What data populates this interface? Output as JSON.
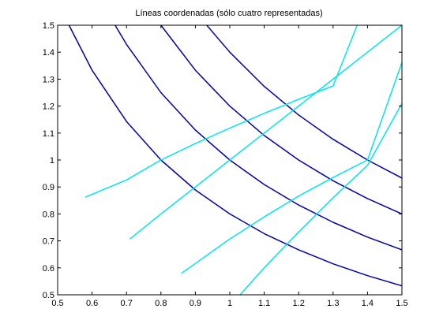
{
  "chart_data": {
    "type": "line",
    "title": "Líneas coordenadas (sólo cuatro representadas)",
    "xlabel": "",
    "ylabel": "",
    "xlim": [
      0.5,
      1.5
    ],
    "ylim": [
      0.5,
      1.5
    ],
    "xticks": [
      "0.5",
      "0.6",
      "0.7",
      "0.8",
      "0.9",
      "1",
      "1.1",
      "1.2",
      "1.3",
      "1.4",
      "1.5"
    ],
    "yticks": [
      "0.5",
      "0.6",
      "0.7",
      "0.8",
      "0.9",
      "1",
      "1.1",
      "1.2",
      "1.3",
      "1.4",
      "1.5"
    ],
    "grid": false,
    "colors": {
      "hyperbola": "#0000b0",
      "ray": "#00e5ee",
      "axes": "#000000"
    },
    "series": [
      {
        "group": "hyperbola",
        "x": [
          0.533,
          0.6,
          0.7,
          0.8,
          0.9,
          1.0,
          1.1,
          1.2,
          1.3,
          1.4,
          1.5
        ],
        "y": [
          1.5,
          1.333,
          1.143,
          1.0,
          0.889,
          0.8,
          0.727,
          0.667,
          0.615,
          0.571,
          0.533
        ]
      },
      {
        "group": "hyperbola",
        "x": [
          0.667,
          0.7,
          0.8,
          0.9,
          1.0,
          1.1,
          1.2,
          1.3,
          1.4,
          1.5
        ],
        "y": [
          1.5,
          1.429,
          1.25,
          1.111,
          1.0,
          0.909,
          0.833,
          0.769,
          0.714,
          0.667
        ]
      },
      {
        "group": "hyperbola",
        "x": [
          0.8,
          0.9,
          1.0,
          1.1,
          1.2,
          1.3,
          1.4,
          1.5
        ],
        "y": [
          1.5,
          1.333,
          1.2,
          1.091,
          1.0,
          0.923,
          0.857,
          0.8
        ]
      },
      {
        "group": "hyperbola",
        "x": [
          0.933,
          1.0,
          1.1,
          1.2,
          1.3,
          1.4,
          1.5
        ],
        "y": [
          1.5,
          1.4,
          1.273,
          1.167,
          1.077,
          1.0,
          0.933
        ]
      },
      {
        "group": "ray",
        "x": [
          0.58,
          0.7,
          0.8,
          0.9,
          1.0,
          1.1,
          1.2,
          1.3,
          1.37
        ],
        "y": [
          0.862,
          0.926,
          1.0,
          1.061,
          1.118,
          1.173,
          1.225,
          1.275,
          1.5
        ]
      },
      {
        "group": "ray",
        "x": [
          0.71,
          0.8,
          0.9,
          1.0,
          1.1,
          1.2,
          1.3,
          1.4,
          1.5
        ],
        "y": [
          0.707,
          0.8,
          0.9,
          1.0,
          1.1,
          1.2,
          1.3,
          1.4,
          1.5
        ]
      },
      {
        "group": "ray",
        "x": [
          0.86,
          0.9,
          1.0,
          1.1,
          1.2,
          1.3,
          1.4,
          1.5
        ],
        "y": [
          0.58,
          0.616,
          0.707,
          0.789,
          0.866,
          0.935,
          1.0,
          1.362
        ]
      },
      {
        "group": "ray",
        "x": [
          1.03,
          1.1,
          1.2,
          1.3,
          1.4,
          1.5
        ],
        "y": [
          0.5,
          0.6,
          0.733,
          0.86,
          0.98,
          1.21
        ]
      }
    ]
  }
}
